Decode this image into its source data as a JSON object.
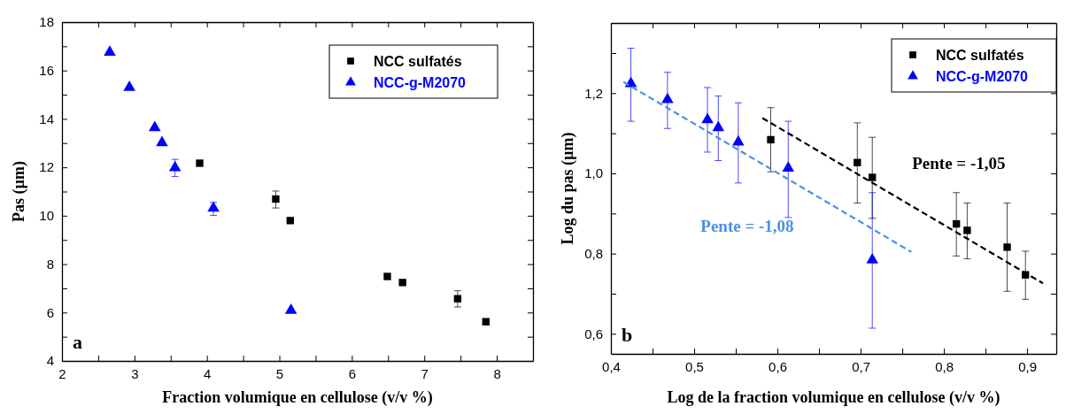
{
  "chart_data": [
    {
      "type": "scatter",
      "xlabel": "Fraction volumique en cellulose (v/v %)",
      "ylabel": "Pas (µm)",
      "xlim": [
        2,
        8.5
      ],
      "ylim": [
        4,
        18
      ],
      "xticks": [
        2,
        {
          "value": 2.5,
          "label": null
        },
        3,
        {
          "value": 3.5,
          "label": null
        },
        4,
        {
          "value": 4.5,
          "label": null
        },
        5,
        {
          "value": 5.5,
          "label": null
        },
        6,
        {
          "value": 6.5,
          "label": null
        },
        7,
        {
          "value": 7.5,
          "label": null
        },
        8
      ],
      "yticks": [
        4,
        {
          "value": 5,
          "label": null
        },
        6,
        {
          "value": 7,
          "label": null
        },
        8,
        {
          "value": 9,
          "label": null
        },
        10,
        {
          "value": 11,
          "label": null
        },
        12,
        {
          "value": 13,
          "label": null
        },
        14,
        {
          "value": 15,
          "label": null
        },
        16,
        {
          "value": 17,
          "label": null
        },
        18
      ],
      "legend": "top right",
      "annotations": [
        "a"
      ],
      "series": [
        {
          "name": "NCC sulfatés",
          "color": "#000000",
          "marker": "square",
          "x": [
            3.9,
            4.95,
            5.15,
            6.49,
            6.7,
            7.46,
            7.85
          ],
          "values": [
            12.17,
            10.69,
            9.8,
            7.49,
            7.24,
            6.57,
            5.62
          ],
          "errors": [
            null,
            [
              10.32,
              11.02
            ],
            null,
            null,
            null,
            [
              6.23,
              6.9
            ],
            null
          ]
        },
        {
          "name": "NCC-g-M2070",
          "color": "#0000ff",
          "marker": "triangle",
          "x": [
            2.66,
            2.93,
            3.28,
            3.38,
            3.56,
            4.09,
            5.16
          ],
          "values": [
            16.75,
            15.3,
            13.64,
            13.02,
            11.98,
            10.31,
            6.09
          ],
          "errors": [
            null,
            null,
            null,
            null,
            [
              11.62,
              12.33
            ],
            [
              10.01,
              10.55
            ],
            null
          ]
        }
      ]
    },
    {
      "type": "scatter",
      "xlabel": "Log de la fraction volumique en cellulose (v/v %)",
      "ylabel": "Log du pas (µm)",
      "xlim": [
        0.4,
        0.935
      ],
      "ylim": [
        0.55,
        1.375
      ],
      "xticks": [
        {
          "value": 0.4,
          "label": "0,4"
        },
        {
          "value": 0.45,
          "label": null
        },
        {
          "value": 0.5,
          "label": "0,5"
        },
        {
          "value": 0.55,
          "label": null
        },
        {
          "value": 0.6,
          "label": "0,6"
        },
        {
          "value": 0.65,
          "label": null
        },
        {
          "value": 0.7,
          "label": "0,7"
        },
        {
          "value": 0.75,
          "label": null
        },
        {
          "value": 0.8,
          "label": "0,8"
        },
        {
          "value": 0.85,
          "label": null
        },
        {
          "value": 0.9,
          "label": "0,9"
        }
      ],
      "yticks": [
        {
          "value": 0.6,
          "label": "0,6"
        },
        {
          "value": 0.7,
          "label": null
        },
        {
          "value": 0.8,
          "label": "0,8"
        },
        {
          "value": 0.9,
          "label": null
        },
        {
          "value": 1.0,
          "label": "1,0"
        },
        {
          "value": 1.1,
          "label": null
        },
        {
          "value": 1.2,
          "label": "1,2"
        },
        {
          "value": 1.3,
          "label": null
        }
      ],
      "legend": "top right",
      "annotations": [
        "b",
        "Pente = -1,05",
        "Pente = -1,08"
      ],
      "series": [
        {
          "name": "NCC sulfatés",
          "color": "#000000",
          "marker": "square",
          "x": [
            0.592,
            0.696,
            0.714,
            0.815,
            0.828,
            0.876,
            0.898
          ],
          "values": [
            1.084,
            1.027,
            0.99,
            0.874,
            0.858,
            0.816,
            0.747
          ],
          "errors": [
            [
              1.004,
              1.164
            ],
            [
              0.926,
              1.126
            ],
            [
              0.888,
              1.09
            ],
            [
              0.794,
              0.952
            ],
            [
              0.787,
              0.926
            ],
            [
              0.706,
              0.926
            ],
            [
              0.686,
              0.806
            ]
          ]
        },
        {
          "name": "NCC-g-M2070",
          "color": "#0000ff",
          "marker": "triangle",
          "x": [
            0.424,
            0.468,
            0.516,
            0.529,
            0.553,
            0.613,
            0.714
          ],
          "values": [
            1.224,
            1.184,
            1.134,
            1.114,
            1.078,
            1.013,
            0.784
          ],
          "errors": [
            [
              1.13,
              1.312
            ],
            [
              1.112,
              1.252
            ],
            [
              1.053,
              1.214
            ],
            [
              1.032,
              1.193
            ],
            [
              0.976,
              1.176
            ],
            [
              0.89,
              1.13
            ],
            [
              0.614,
              0.952
            ]
          ]
        },
        {
          "type": "line",
          "color": "#000000",
          "marker": "none",
          "line_style": "dashed",
          "x": [
            0.582,
            0.919
          ],
          "values": [
            1.138,
            0.726
          ]
        },
        {
          "type": "line",
          "color": "#4a90e2",
          "marker": "none",
          "line_style": "dashed",
          "x": [
            0.415,
            0.761
          ],
          "values": [
            1.228,
            0.804
          ]
        }
      ]
    }
  ]
}
